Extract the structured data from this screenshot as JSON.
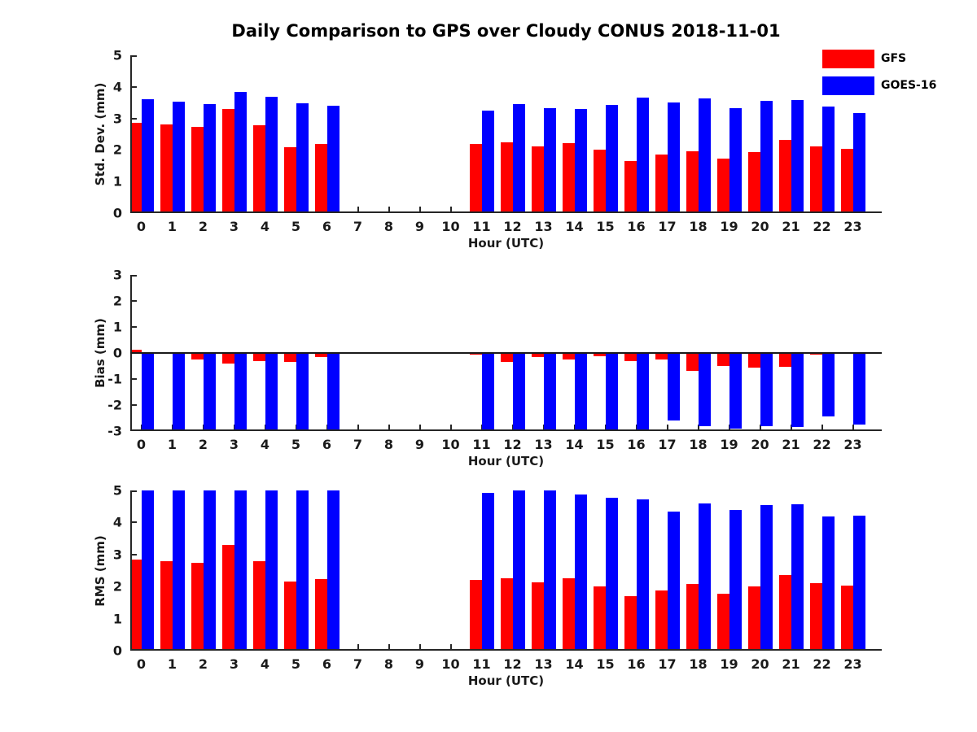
{
  "title": "Daily Comparison to GPS over Cloudy CONUS 2018-11-01",
  "colors": {
    "gfs": "#ff0000",
    "goes16": "#0000ff",
    "axis": "#262626",
    "text": "#1a1a1a"
  },
  "legend": {
    "position": "top-right",
    "entries": [
      {
        "label": "GFS",
        "color": "#ff0000"
      },
      {
        "label": "GOES-16",
        "color": "#0000ff"
      }
    ]
  },
  "chart_data": [
    {
      "type": "bar",
      "name": "std-dev",
      "ylabel": "Std. Dev. (mm)",
      "xlabel": "Hour (UTC)",
      "ylim": [
        0,
        5
      ],
      "yticks": [
        0,
        1,
        2,
        3,
        4,
        5
      ],
      "grid": false,
      "zero_line": false,
      "categories": [
        "0",
        "1",
        "2",
        "3",
        "4",
        "5",
        "6",
        "7",
        "8",
        "9",
        "10",
        "11",
        "12",
        "13",
        "14",
        "15",
        "16",
        "17",
        "18",
        "19",
        "20",
        "21",
        "22",
        "23"
      ],
      "series": [
        {
          "name": "GFS",
          "color": "#ff0000",
          "values": [
            2.85,
            2.8,
            2.74,
            3.3,
            2.78,
            2.1,
            2.2,
            null,
            null,
            null,
            null,
            2.18,
            2.25,
            2.11,
            2.22,
            2.0,
            1.66,
            1.86,
            1.97,
            1.73,
            1.93,
            2.32,
            2.12,
            2.04
          ]
        },
        {
          "name": "GOES-16",
          "color": "#0000ff",
          "values": [
            3.6,
            3.52,
            3.45,
            3.85,
            3.68,
            3.48,
            3.4,
            null,
            null,
            null,
            null,
            3.25,
            3.45,
            3.33,
            3.3,
            3.43,
            3.66,
            3.51,
            3.63,
            3.33,
            3.56,
            3.58,
            3.38,
            3.17
          ]
        }
      ]
    },
    {
      "type": "bar",
      "name": "bias",
      "ylabel": "Bias (mm)",
      "xlabel": "Hour (UTC)",
      "ylim": [
        -3,
        3
      ],
      "yticks": [
        -3,
        -2,
        -1,
        0,
        1,
        2,
        3
      ],
      "grid": false,
      "zero_line": true,
      "categories": [
        "0",
        "1",
        "2",
        "3",
        "4",
        "5",
        "6",
        "7",
        "8",
        "9",
        "10",
        "11",
        "12",
        "13",
        "14",
        "15",
        "16",
        "17",
        "18",
        "19",
        "20",
        "21",
        "22",
        "23"
      ],
      "series": [
        {
          "name": "GFS",
          "color": "#ff0000",
          "values": [
            0.13,
            -0.02,
            -0.24,
            -0.41,
            -0.32,
            -0.35,
            -0.16,
            null,
            null,
            null,
            null,
            -0.05,
            -0.34,
            -0.15,
            -0.24,
            -0.13,
            -0.31,
            -0.24,
            -0.68,
            -0.49,
            -0.56,
            -0.54,
            -0.06,
            -0.02
          ]
        },
        {
          "name": "GOES-16",
          "color": "#0000ff",
          "values": [
            -3.0,
            -3.0,
            -3.0,
            -3.0,
            -3.0,
            -3.0,
            -3.0,
            null,
            null,
            null,
            null,
            -3.0,
            -3.0,
            -3.0,
            -3.0,
            -3.0,
            -3.0,
            -2.6,
            -2.8,
            -2.9,
            -2.82,
            -2.84,
            -2.45,
            -2.76
          ]
        }
      ]
    },
    {
      "type": "bar",
      "name": "rms",
      "ylabel": "RMS (mm)",
      "xlabel": "Hour (UTC)",
      "ylim": [
        0,
        5
      ],
      "yticks": [
        0,
        1,
        2,
        3,
        4,
        5
      ],
      "grid": false,
      "zero_line": false,
      "categories": [
        "0",
        "1",
        "2",
        "3",
        "4",
        "5",
        "6",
        "7",
        "8",
        "9",
        "10",
        "11",
        "12",
        "13",
        "14",
        "15",
        "16",
        "17",
        "18",
        "19",
        "20",
        "21",
        "22",
        "23"
      ],
      "series": [
        {
          "name": "GFS",
          "color": "#ff0000",
          "values": [
            2.85,
            2.8,
            2.75,
            3.3,
            2.8,
            2.15,
            2.24,
            null,
            null,
            null,
            null,
            2.2,
            2.27,
            2.12,
            2.25,
            2.0,
            1.7,
            1.88,
            2.08,
            1.77,
            2.0,
            2.36,
            2.1,
            2.03
          ]
        },
        {
          "name": "GOES-16",
          "color": "#0000ff",
          "values": [
            5.0,
            5.0,
            5.0,
            5.0,
            5.0,
            5.0,
            5.0,
            null,
            null,
            null,
            null,
            4.92,
            5.0,
            5.0,
            4.88,
            4.78,
            4.72,
            4.35,
            4.6,
            4.4,
            4.55,
            4.56,
            4.2,
            4.22
          ]
        }
      ]
    }
  ]
}
